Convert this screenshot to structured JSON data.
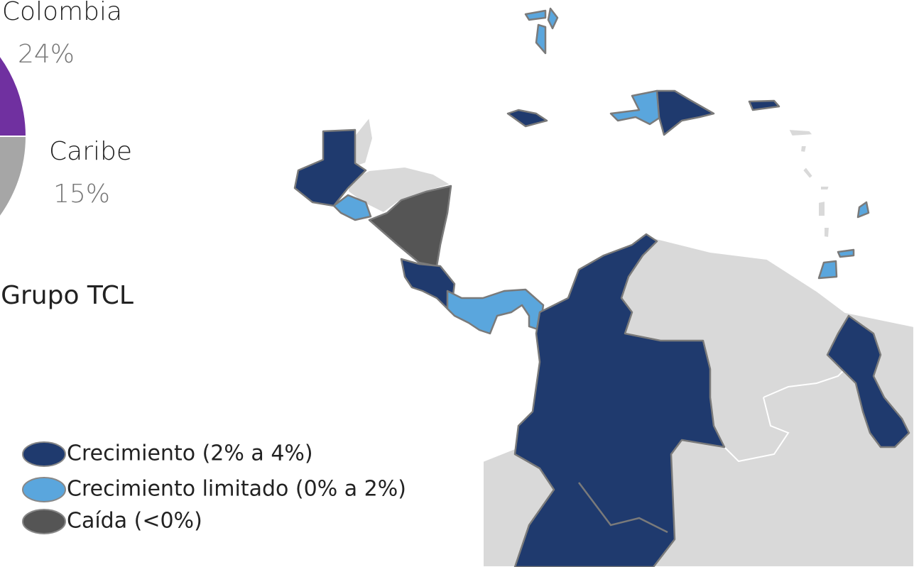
{
  "chart_data": {
    "type": "pie",
    "categories": [
      "Colombia",
      "Caribe"
    ],
    "values": [
      24,
      15
    ],
    "value_labels": [
      "24%",
      "15%"
    ],
    "colors": [
      "#7030a0",
      "#a6a6a6"
    ],
    "extra_labels": [
      "Grupo TCL"
    ]
  },
  "legend": {
    "items": [
      {
        "label": "Crecimiento (2% a 4%)",
        "color": "#1f3a6e"
      },
      {
        "label": "Crecimiento limitado (0% a 2%)",
        "color": "#5aa6dd"
      },
      {
        "label": "Caída (<0%)",
        "color": "#555555"
      }
    ]
  }
}
